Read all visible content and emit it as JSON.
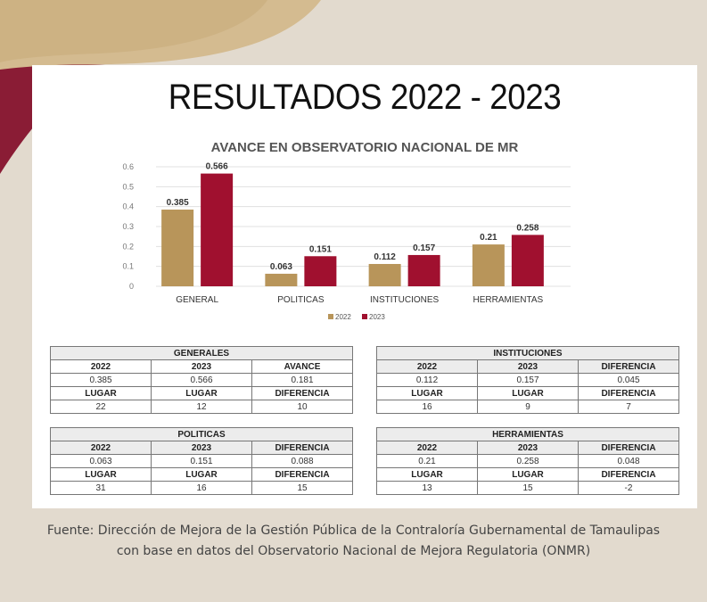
{
  "title": "RESULTADOS 2022 - 2023",
  "chart_data": {
    "type": "bar",
    "title": "AVANCE EN OBSERVATORIO NACIONAL DE MR",
    "categories": [
      "GENERAL",
      "POLITICAS",
      "INSTITUCIONES",
      "HERRAMIENTAS"
    ],
    "series": [
      {
        "name": "2022",
        "values": [
          0.385,
          0.063,
          0.112,
          0.21
        ],
        "labels": [
          "0.385",
          "0.063",
          "0.112",
          "0.21"
        ],
        "color": "#b8955a"
      },
      {
        "name": "2023",
        "values": [
          0.566,
          0.151,
          0.157,
          0.258
        ],
        "labels": [
          "0.566",
          "0.151",
          "0.157",
          "0.258"
        ],
        "color": "#a0102f"
      }
    ],
    "ylim": [
      0,
      0.6
    ],
    "yticks": [
      "0",
      "0.1",
      "0.2",
      "0.3",
      "0.4",
      "0.5",
      "0.6"
    ],
    "grid": true,
    "legend": "bottom"
  },
  "tables": [
    {
      "title": "GENERALES",
      "rows": [
        [
          "2022",
          "2023",
          "AVANCE"
        ],
        [
          "0.385",
          "0.566",
          "0.181"
        ],
        [
          "LUGAR",
          "LUGAR",
          "DIFERENCIA"
        ],
        [
          "22",
          "12",
          "10"
        ]
      ]
    },
    {
      "title": "INSTITUCIONES",
      "rows": [
        [
          "2022",
          "2023",
          "DIFERENCIA"
        ],
        [
          "0.112",
          "0.157",
          "0.045"
        ],
        [
          "LUGAR",
          "LUGAR",
          "DIFERENCIA"
        ],
        [
          "16",
          "9",
          "7"
        ]
      ]
    },
    {
      "title": "POLITICAS",
      "rows": [
        [
          "2022",
          "2023",
          "DIFERENCIA"
        ],
        [
          "0.063",
          "0.151",
          "0.088"
        ],
        [
          "LUGAR",
          "LUGAR",
          "DIFERENCIA"
        ],
        [
          "31",
          "16",
          "15"
        ]
      ]
    },
    {
      "title": "HERRAMIENTAS",
      "rows": [
        [
          "2022",
          "2023",
          "DIFERENCIA"
        ],
        [
          "0.21",
          "0.258",
          "0.048"
        ],
        [
          "LUGAR",
          "LUGAR",
          "DIFERENCIA"
        ],
        [
          "13",
          "15",
          "-2"
        ]
      ]
    }
  ],
  "source": {
    "line1": "Fuente: Dirección de Mejora de la Gestión Pública de la Contraloría Gubernamental de Tamaulipas",
    "line2": "con base en datos del Observatorio Nacional de Mejora Regulatoria (ONMR)"
  }
}
